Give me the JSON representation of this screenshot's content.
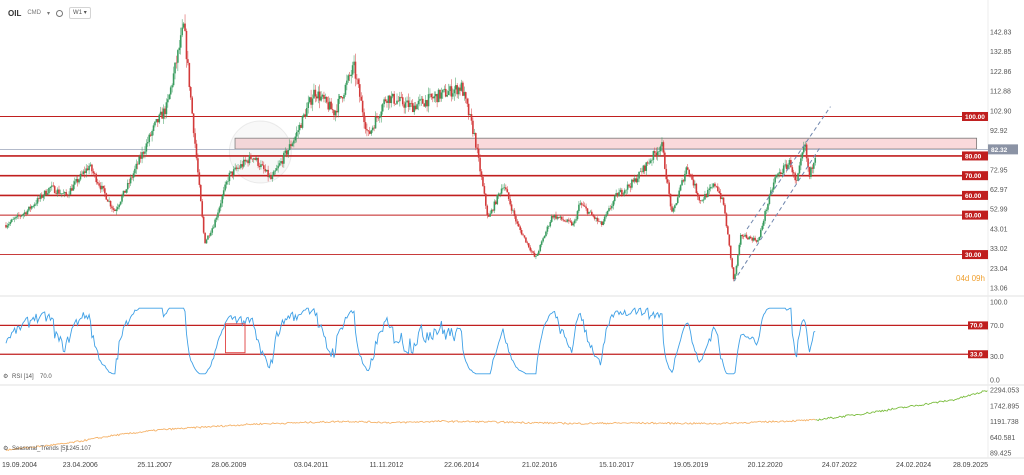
{
  "toolbar": {
    "symbol": "OIL",
    "period_label": "CMD",
    "interval": "W1"
  },
  "chart_data": [
    {
      "type": "candlestick",
      "title": "OIL",
      "y_ticks": [
        "142.83",
        "132.85",
        "122.86",
        "112.88",
        "102.90",
        "92.92",
        "82.32",
        "72.95",
        "62.97",
        "52.99",
        "43.01",
        "33.02",
        "23.04",
        "13.06"
      ],
      "ylim": [
        13.06,
        150
      ],
      "current_price": "82.32",
      "countdown": "04d 09h",
      "x_ticks": [
        "19.09.2004",
        "23.04.2006",
        "25.11.2007",
        "28.06.2009",
        "03.04.2011",
        "11.11.2012",
        "22.06.2014",
        "21.02.2016",
        "15.10.2017",
        "19.05.2019",
        "20.12.2020",
        "24.07.2022",
        "24.02.2024",
        "28.09.2025"
      ],
      "horizontal_levels": [
        {
          "label": "100.00",
          "value": 100
        },
        {
          "label": "80.00",
          "value": 80
        },
        {
          "label": "70.00",
          "value": 70
        },
        {
          "label": "60.00",
          "value": 60
        },
        {
          "label": "50.00",
          "value": 50
        },
        {
          "label": "30.00",
          "value": 30
        }
      ],
      "resistance_zone": {
        "low": 83.5,
        "high": 89
      },
      "trend_channel": {
        "lower": [
          {
            "date": "2020-04-20",
            "value": 16.5
          },
          {
            "date": "2022-03-01",
            "value": 85
          }
        ],
        "upper": [
          {
            "date": "2020-08-01",
            "value": 43
          },
          {
            "date": "2022-05-15",
            "value": 105
          }
        ]
      },
      "series": [
        {
          "date": "2004-09-19",
          "value": 45
        },
        {
          "date": "2005-03-01",
          "value": 52
        },
        {
          "date": "2005-09-01",
          "value": 64
        },
        {
          "date": "2006-01-01",
          "value": 60
        },
        {
          "date": "2006-07-01",
          "value": 75
        },
        {
          "date": "2007-01-15",
          "value": 52
        },
        {
          "date": "2007-05-01",
          "value": 65
        },
        {
          "date": "2007-11-25",
          "value": 95
        },
        {
          "date": "2008-03-01",
          "value": 105
        },
        {
          "date": "2008-07-11",
          "value": 146
        },
        {
          "date": "2008-10-01",
          "value": 90
        },
        {
          "date": "2008-12-20",
          "value": 36
        },
        {
          "date": "2009-03-01",
          "value": 45
        },
        {
          "date": "2009-06-28",
          "value": 70
        },
        {
          "date": "2010-01-01",
          "value": 80
        },
        {
          "date": "2010-05-25",
          "value": 68
        },
        {
          "date": "2010-12-01",
          "value": 90
        },
        {
          "date": "2011-04-29",
          "value": 113
        },
        {
          "date": "2011-10-01",
          "value": 102
        },
        {
          "date": "2012-03-01",
          "value": 125
        },
        {
          "date": "2012-06-20",
          "value": 90
        },
        {
          "date": "2012-11-11",
          "value": 110
        },
        {
          "date": "2013-06-01",
          "value": 105
        },
        {
          "date": "2013-12-01",
          "value": 110
        },
        {
          "date": "2014-06-22",
          "value": 115
        },
        {
          "date": "2014-10-01",
          "value": 90
        },
        {
          "date": "2015-01-15",
          "value": 48
        },
        {
          "date": "2015-05-15",
          "value": 66
        },
        {
          "date": "2015-09-01",
          "value": 45
        },
        {
          "date": "2016-01-20",
          "value": 28
        },
        {
          "date": "2016-06-01",
          "value": 50
        },
        {
          "date": "2016-11-15",
          "value": 45
        },
        {
          "date": "2017-01-01",
          "value": 56
        },
        {
          "date": "2017-06-20",
          "value": 45
        },
        {
          "date": "2017-10-15",
          "value": 60
        },
        {
          "date": "2018-03-01",
          "value": 67
        },
        {
          "date": "2018-10-03",
          "value": 86
        },
        {
          "date": "2018-12-24",
          "value": 50
        },
        {
          "date": "2019-04-20",
          "value": 75
        },
        {
          "date": "2019-05-19",
          "value": 70
        },
        {
          "date": "2019-08-01",
          "value": 57
        },
        {
          "date": "2019-12-01",
          "value": 66
        },
        {
          "date": "2020-02-01",
          "value": 55
        },
        {
          "date": "2020-04-21",
          "value": 16
        },
        {
          "date": "2020-06-15",
          "value": 40
        },
        {
          "date": "2020-10-30",
          "value": 37
        },
        {
          "date": "2020-12-20",
          "value": 51
        },
        {
          "date": "2021-03-10",
          "value": 69
        },
        {
          "date": "2021-07-05",
          "value": 77
        },
        {
          "date": "2021-08-20",
          "value": 65
        },
        {
          "date": "2021-10-25",
          "value": 86
        },
        {
          "date": "2021-12-01",
          "value": 69
        },
        {
          "date": "2022-01-20",
          "value": 82.32
        }
      ]
    },
    {
      "type": "line",
      "title": "RSI [14]",
      "value_label": "70.0",
      "ylim": [
        0,
        100
      ],
      "y_ticks": [
        "100.0",
        "70.0",
        "30.0",
        "0.0"
      ],
      "levels": [
        {
          "label": "70.0",
          "value": 70
        },
        {
          "label": "33.0",
          "value": 33
        }
      ],
      "box_highlight": {
        "from": "2009-06-01",
        "to": "2009-11-01",
        "low": 35,
        "high": 72
      }
    },
    {
      "type": "line",
      "title": "Seasonal_Trends [5]",
      "value_label": "1245.107",
      "y_ticks": [
        "2294.053",
        "1742.895",
        "1191.738",
        "640.581",
        "89.425"
      ],
      "ylim": [
        89.425,
        2294.053
      ],
      "series_actual": [
        {
          "date": "2004-09-19",
          "value": 200
        },
        {
          "date": "2006-01-01",
          "value": 420
        },
        {
          "date": "2007-01-01",
          "value": 700
        },
        {
          "date": "2008-01-01",
          "value": 900
        },
        {
          "date": "2009-01-01",
          "value": 1000
        },
        {
          "date": "2010-01-01",
          "value": 1100
        },
        {
          "date": "2011-01-01",
          "value": 1150
        },
        {
          "date": "2012-01-01",
          "value": 1200
        },
        {
          "date": "2013-01-01",
          "value": 1150
        },
        {
          "date": "2014-01-01",
          "value": 1200
        },
        {
          "date": "2015-01-01",
          "value": 1180
        },
        {
          "date": "2016-01-01",
          "value": 1150
        },
        {
          "date": "2017-01-01",
          "value": 1120
        },
        {
          "date": "2018-01-01",
          "value": 1140
        },
        {
          "date": "2019-01-01",
          "value": 1130
        },
        {
          "date": "2020-01-01",
          "value": 1120
        },
        {
          "date": "2021-01-01",
          "value": 1180
        },
        {
          "date": "2022-01-20",
          "value": 1245
        }
      ],
      "series_projection": [
        {
          "date": "2022-01-20",
          "value": 1245
        },
        {
          "date": "2023-01-01",
          "value": 1450
        },
        {
          "date": "2024-01-01",
          "value": 1700
        },
        {
          "date": "2025-01-01",
          "value": 1950
        },
        {
          "date": "2025-09-28",
          "value": 2280
        }
      ]
    }
  ],
  "colors": {
    "up": "#3a9c5f",
    "down": "#d33a3a",
    "level": "#c01f1f",
    "rsi": "#3fa0e6",
    "seasonal_actual": "#f5b36a",
    "seasonal_projection": "#7bbd3e",
    "channel": "#6f86ad"
  }
}
